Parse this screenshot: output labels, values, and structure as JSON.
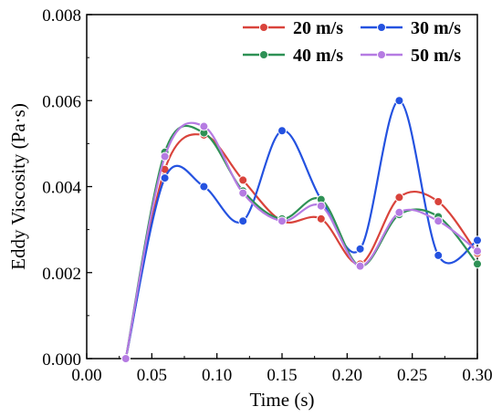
{
  "chart_data": {
    "type": "line",
    "xlabel": "Time (s)",
    "ylabel": "Eddy Viscosity (Pa·s)",
    "xlim": [
      0.0,
      0.3
    ],
    "ylim": [
      0.0,
      0.008
    ],
    "x_ticks": [
      0.0,
      0.05,
      0.1,
      0.15,
      0.2,
      0.25,
      0.3
    ],
    "x_tick_labels": [
      "0.00",
      "0.05",
      "0.10",
      "0.15",
      "0.20",
      "0.25",
      "0.30"
    ],
    "y_ticks": [
      0.0,
      0.002,
      0.004,
      0.006,
      0.008
    ],
    "y_tick_labels": [
      "0.000",
      "0.002",
      "0.004",
      "0.006",
      "0.008"
    ],
    "grid": false,
    "legend_position": "top-right",
    "x": [
      0.03,
      0.06,
      0.09,
      0.12,
      0.15,
      0.18,
      0.21,
      0.24,
      0.27,
      0.3
    ],
    "series": [
      {
        "name": "20 m/s",
        "color": "#d9433b",
        "values": [
          0.0,
          0.0044,
          0.0052,
          0.00415,
          0.0032,
          0.00325,
          0.0022,
          0.00375,
          0.00365,
          0.00245
        ]
      },
      {
        "name": "30 m/s",
        "color": "#2452e0",
        "values": [
          0.0,
          0.0042,
          0.004,
          0.0032,
          0.0053,
          0.0037,
          0.00255,
          0.006,
          0.0024,
          0.00275
        ]
      },
      {
        "name": "40 m/s",
        "color": "#2e9155",
        "values": [
          0.0,
          0.0048,
          0.00525,
          0.0039,
          0.00325,
          0.0037,
          0.00215,
          0.00335,
          0.0033,
          0.0022
        ]
      },
      {
        "name": "50 m/s",
        "color": "#b57be2",
        "values": [
          0.0,
          0.0047,
          0.0054,
          0.00385,
          0.0032,
          0.00355,
          0.00215,
          0.0034,
          0.0032,
          0.0025
        ]
      }
    ]
  }
}
